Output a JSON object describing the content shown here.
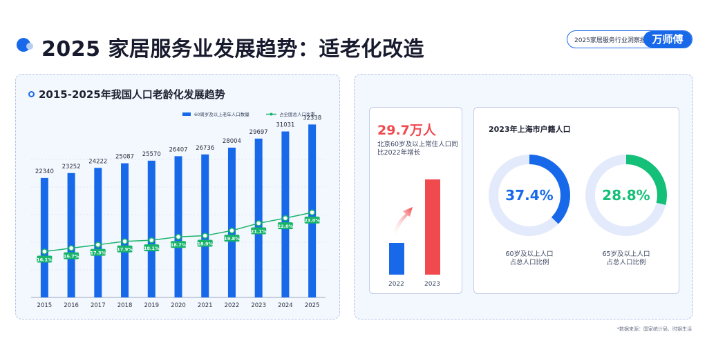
{
  "header": {
    "title": "2025 家居服务业发展趋势：适老化改造",
    "brand_text": "2025家居服务行业洞察报告",
    "brand_logo": "万师傅"
  },
  "left_panel": {
    "title": "2015-2025年我国人口老龄化发展趋势"
  },
  "chart_data": {
    "type": "bar",
    "title": "2015-2025年我国人口老龄化发展趋势",
    "categories": [
      "2015",
      "2016",
      "2017",
      "2018",
      "2019",
      "2020",
      "2021",
      "2022",
      "2023",
      "2024",
      "2025"
    ],
    "series": [
      {
        "name": "60周岁及以上老年人口数量",
        "type": "bar",
        "color": "#1769ea",
        "values": [
          22340,
          23252,
          24222,
          25087,
          25570,
          26407,
          26736,
          28004,
          29697,
          31031,
          32338
        ]
      },
      {
        "name": "占全国总人口比重",
        "type": "line",
        "color": "#19b46b",
        "values": [
          16.1,
          16.7,
          17.3,
          17.9,
          18.1,
          18.7,
          18.9,
          19.8,
          21.1,
          22.0,
          23.0
        ],
        "labels": [
          "16.1%",
          "16.7%",
          "17.3%",
          "17.9%",
          "18.1%",
          "18.7%",
          "18.9%",
          "19.8%",
          "21.1%",
          "22.0%",
          "23.0%"
        ]
      }
    ],
    "legend_position": "top-right",
    "grid": true
  },
  "beijing_card": {
    "value": "29.7万人",
    "description": "北京60岁及以上常住人口同比2022年增长",
    "bars": [
      {
        "year": "2022",
        "color": "#1769ea"
      },
      {
        "year": "2023",
        "color": "#f04a4f"
      }
    ]
  },
  "shanghai_card": {
    "title": "2023年上海市户籍人口",
    "donuts": [
      {
        "value": "37.4%",
        "fraction": 0.374,
        "color": "#1769ea",
        "label_line1": "60岁及以上人口",
        "label_line2": "占总人口比例"
      },
      {
        "value": "28.8%",
        "fraction": 0.288,
        "color": "#14bf77",
        "label_line1": "65岁及以上人口",
        "label_line2": "占总人口比例"
      }
    ]
  },
  "footnote": "*数据来源：国家统计局、时钢生活"
}
